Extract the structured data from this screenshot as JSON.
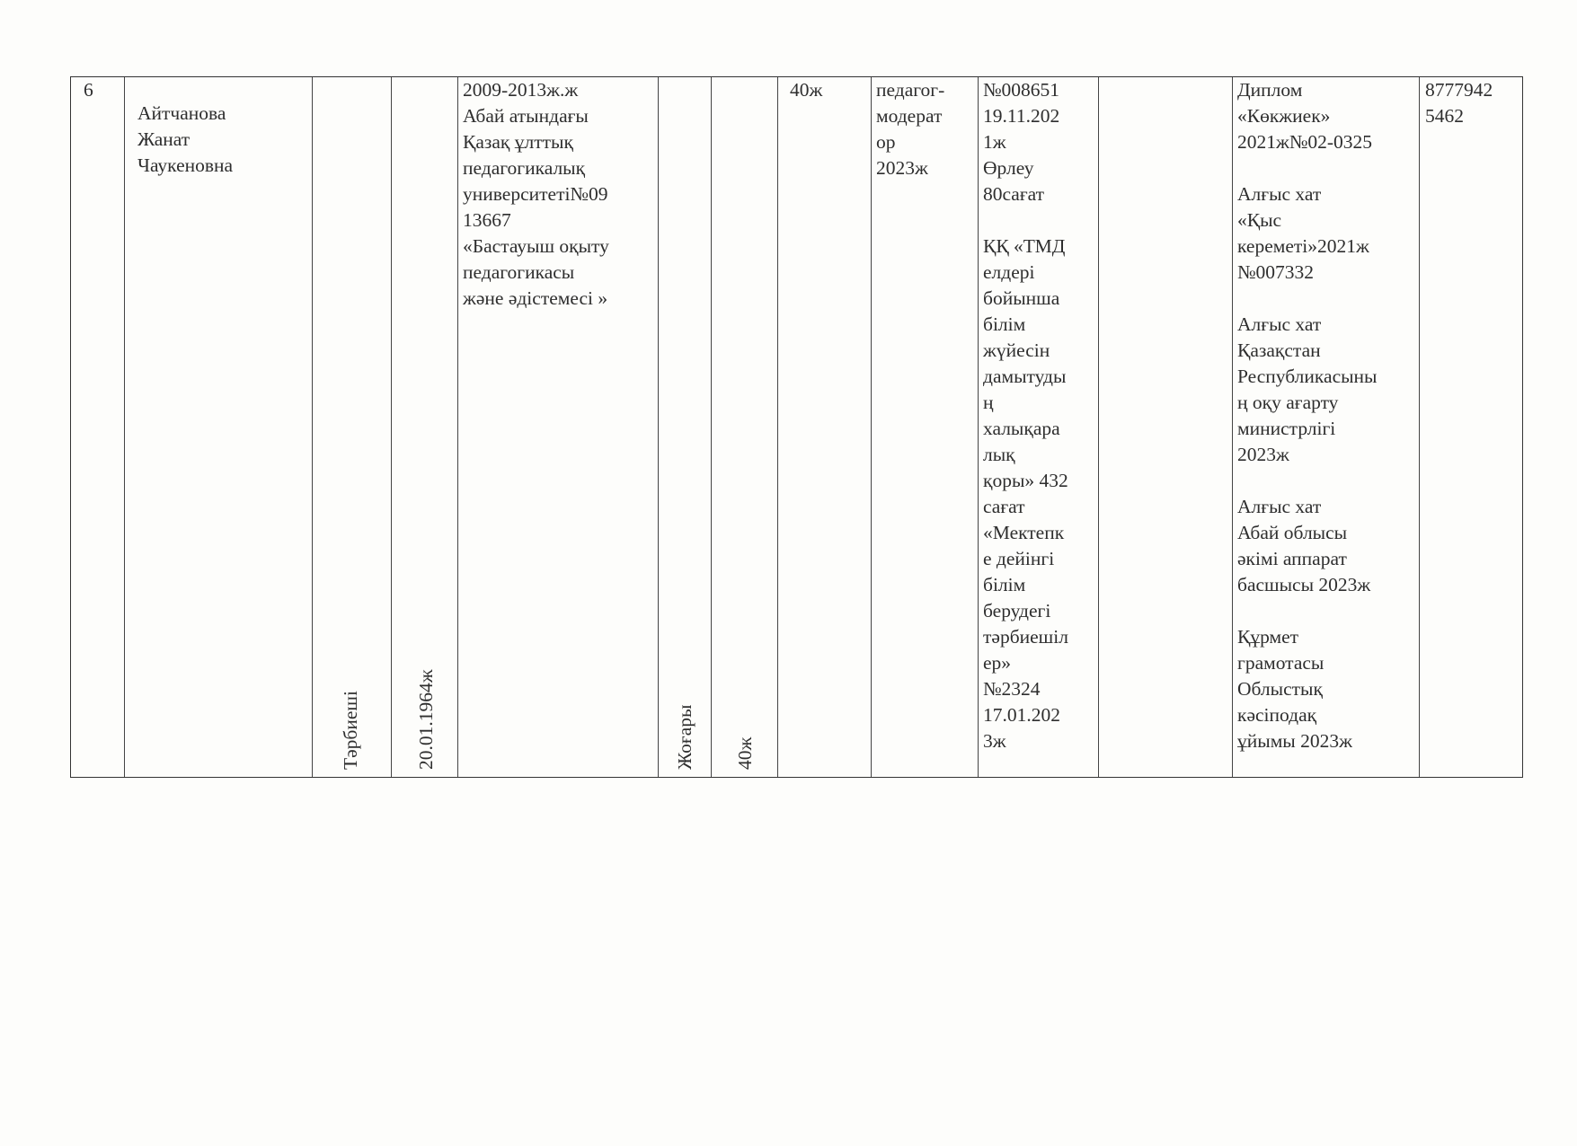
{
  "row": {
    "number": "6",
    "name": "Айтчанова\nЖанат\nЧаукеновна",
    "position": "Тәрбиеші",
    "birth_date": "20.01.1964ж",
    "education": "2009-2013ж.ж\nАбай атындағы\nҚазақ  ұлттық\nпедагогикалық\nуниверситеті№09\n13667\n«Бастауыш оқыту\nпедагогикасы\nжәне әдістемесі »",
    "education_level": "Жоғары",
    "total_experience": "40ж",
    "pedagogical_experience": "40ж",
    "category": "педагог-\nмодерат\nор\n2023ж",
    "courses": "№008651\n19.11.202\n1ж\nӨрлеу\n80сағат\n\nҚҚ «ТМД\nелдері\nбойынша\nбілім\nжүйесін\nдамытуды\nң\nхалықара\nлық\nқоры» 432\nсағат\n«Мектепк\nе дейінгі\nбілім\nберудегі\nтәрбиешіл\nер»\n№2324\n17.01.202\n3ж",
    "empty_column": "",
    "awards": "Диплом\n«Көкжиек»\n2021ж№02-0325\n\nАлғыс хат\n«Қыс\nкереметі»2021ж\n№007332\n\nАлғыс хат\nҚазақстан\nРеспубликасыны\nң оқу ағарту\nминистрлігі\n2023ж\n\nАлғыс хат\nАбай облысы\nәкімі аппарат\nбасшысы 2023ж\n\nҚұрмет\nграмотасы\nОблыстық\nкәсіподақ\nұйымы 2023ж",
    "phone": "8777942\n5462"
  }
}
